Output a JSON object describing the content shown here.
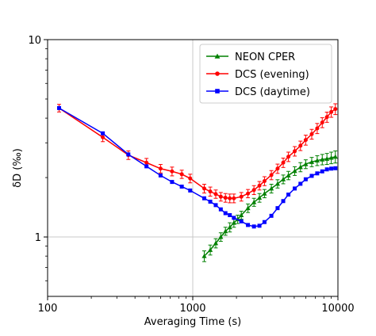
{
  "chart_data": {
    "type": "line",
    "xlabel": "Averaging Time (s)",
    "ylabel": "δD (‰)",
    "x_scale": "log",
    "y_scale": "log",
    "xlim": [
      100,
      10000
    ],
    "ylim": [
      0.5,
      10
    ],
    "x_ticks": [
      100,
      1000,
      10000
    ],
    "x_tick_labels": [
      "100",
      "1000",
      "10000"
    ],
    "y_ticks": [
      1,
      10
    ],
    "y_tick_labels": [
      "1",
      "10"
    ],
    "grid": true,
    "legend_position": "top-right",
    "series": [
      {
        "name": "NEON CPER",
        "color": "#008000",
        "marker": "triangle",
        "x": [
          1200,
          1320,
          1440,
          1560,
          1680,
          1800,
          1920,
          2040,
          2160,
          2400,
          2640,
          2880,
          3120,
          3480,
          3840,
          4200,
          4560,
          5040,
          5520,
          6000,
          6600,
          7200,
          7800,
          8400,
          9000,
          9600
        ],
        "y": [
          0.8,
          0.86,
          0.93,
          1.0,
          1.07,
          1.12,
          1.18,
          1.23,
          1.29,
          1.4,
          1.5,
          1.58,
          1.66,
          1.76,
          1.86,
          1.96,
          2.05,
          2.16,
          2.26,
          2.34,
          2.4,
          2.44,
          2.47,
          2.49,
          2.52,
          2.55
        ],
        "err": [
          0.05,
          0.05,
          0.05,
          0.05,
          0.05,
          0.06,
          0.06,
          0.06,
          0.06,
          0.07,
          0.07,
          0.08,
          0.08,
          0.09,
          0.09,
          0.1,
          0.1,
          0.11,
          0.12,
          0.12,
          0.13,
          0.14,
          0.15,
          0.16,
          0.17,
          0.18
        ]
      },
      {
        "name": "DCS (evening)",
        "color": "#ff0000",
        "marker": "circle",
        "x": [
          120,
          240,
          360,
          480,
          600,
          720,
          840,
          960,
          1200,
          1320,
          1440,
          1560,
          1680,
          1800,
          1920,
          2160,
          2400,
          2640,
          2880,
          3120,
          3480,
          3840,
          4200,
          4560,
          5040,
          5520,
          6000,
          6600,
          7200,
          7800,
          8400,
          9000,
          9600
        ],
        "y": [
          4.5,
          3.2,
          2.6,
          2.38,
          2.22,
          2.15,
          2.08,
          1.98,
          1.76,
          1.7,
          1.65,
          1.6,
          1.58,
          1.57,
          1.57,
          1.6,
          1.66,
          1.73,
          1.82,
          1.92,
          2.06,
          2.22,
          2.38,
          2.55,
          2.72,
          2.9,
          3.1,
          3.32,
          3.55,
          3.8,
          4.05,
          4.3,
          4.45
        ],
        "err": [
          0.2,
          0.16,
          0.13,
          0.12,
          0.11,
          0.11,
          0.1,
          0.1,
          0.09,
          0.09,
          0.08,
          0.08,
          0.08,
          0.08,
          0.08,
          0.08,
          0.08,
          0.09,
          0.09,
          0.1,
          0.11,
          0.12,
          0.13,
          0.14,
          0.15,
          0.16,
          0.18,
          0.19,
          0.21,
          0.22,
          0.24,
          0.26,
          0.28
        ]
      },
      {
        "name": "DCS (daytime)",
        "color": "#0000ff",
        "marker": "square",
        "x": [
          120,
          240,
          360,
          480,
          600,
          720,
          840,
          960,
          1200,
          1320,
          1440,
          1560,
          1680,
          1800,
          1920,
          2160,
          2400,
          2640,
          2880,
          3120,
          3480,
          3840,
          4200,
          4560,
          5040,
          5520,
          6000,
          6600,
          7200,
          7800,
          8400,
          9000,
          9600
        ],
        "y": [
          4.5,
          3.35,
          2.62,
          2.28,
          2.05,
          1.9,
          1.8,
          1.72,
          1.57,
          1.51,
          1.45,
          1.38,
          1.32,
          1.29,
          1.25,
          1.2,
          1.15,
          1.13,
          1.14,
          1.19,
          1.28,
          1.4,
          1.52,
          1.64,
          1.76,
          1.86,
          1.96,
          2.04,
          2.1,
          2.15,
          2.2,
          2.22,
          2.23
        ]
      }
    ]
  }
}
